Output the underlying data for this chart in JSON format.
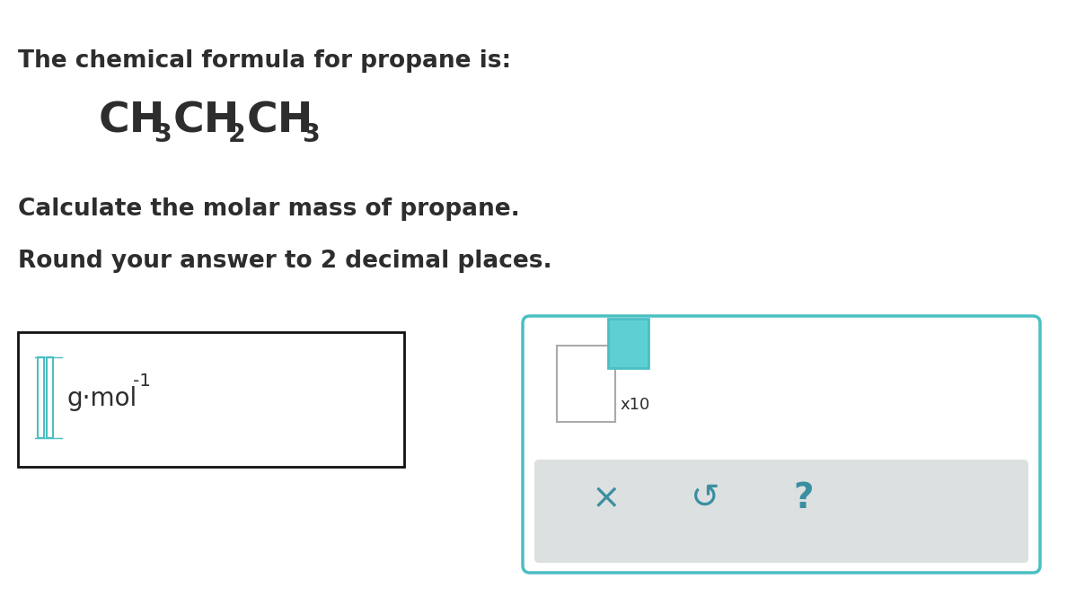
{
  "bg_color": "#ffffff",
  "text_color": "#2d2d2d",
  "line1": "The chemical formula for propane is:",
  "line3": "Calculate the molar mass of propane.",
  "line4": "Round your answer to 2 decimal places.",
  "unit_text": "g·mol",
  "unit_sup": "-1",
  "input_box_color": "#111111",
  "teal_color": "#4bbfc3",
  "teal_fill": "#5dd0d4",
  "gray_bg": "#dce0e0",
  "icon_color": "#3a8fa0",
  "font_size_text": 19,
  "font_size_formula": 34,
  "font_size_unit": 20
}
